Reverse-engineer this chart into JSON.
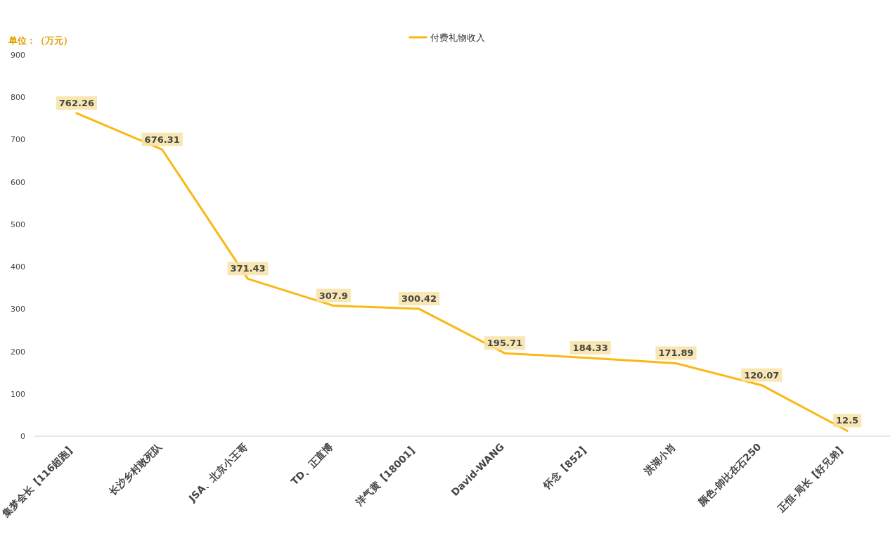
{
  "chart_data": {
    "type": "line",
    "ylabel": "单位：（万元）",
    "categories": [
      "集梦会长【116超跑】",
      "长沙乡村敢死队",
      "JSA、北京小王哥",
      "TD、正直博",
      "洋气黄【18001】",
      "David-WANG",
      "怀念【852】",
      "洪湖小肖",
      "颜色-帥比在石250",
      "正恒-局长【好兄弟】"
    ],
    "series": [
      {
        "name": "付费礼物收入",
        "color": "#fbb714",
        "values": [
          762.26,
          676.31,
          371.43,
          307.9,
          300.42,
          195.71,
          184.33,
          171.89,
          120.07,
          12.5
        ]
      }
    ],
    "ylim": [
      0,
      900
    ],
    "yticks": [
      0,
      100,
      200,
      300,
      400,
      500,
      600,
      700,
      800,
      900
    ],
    "data_labels": true,
    "legend": "top",
    "grid": false,
    "marker": "none",
    "line_style": "solid"
  }
}
